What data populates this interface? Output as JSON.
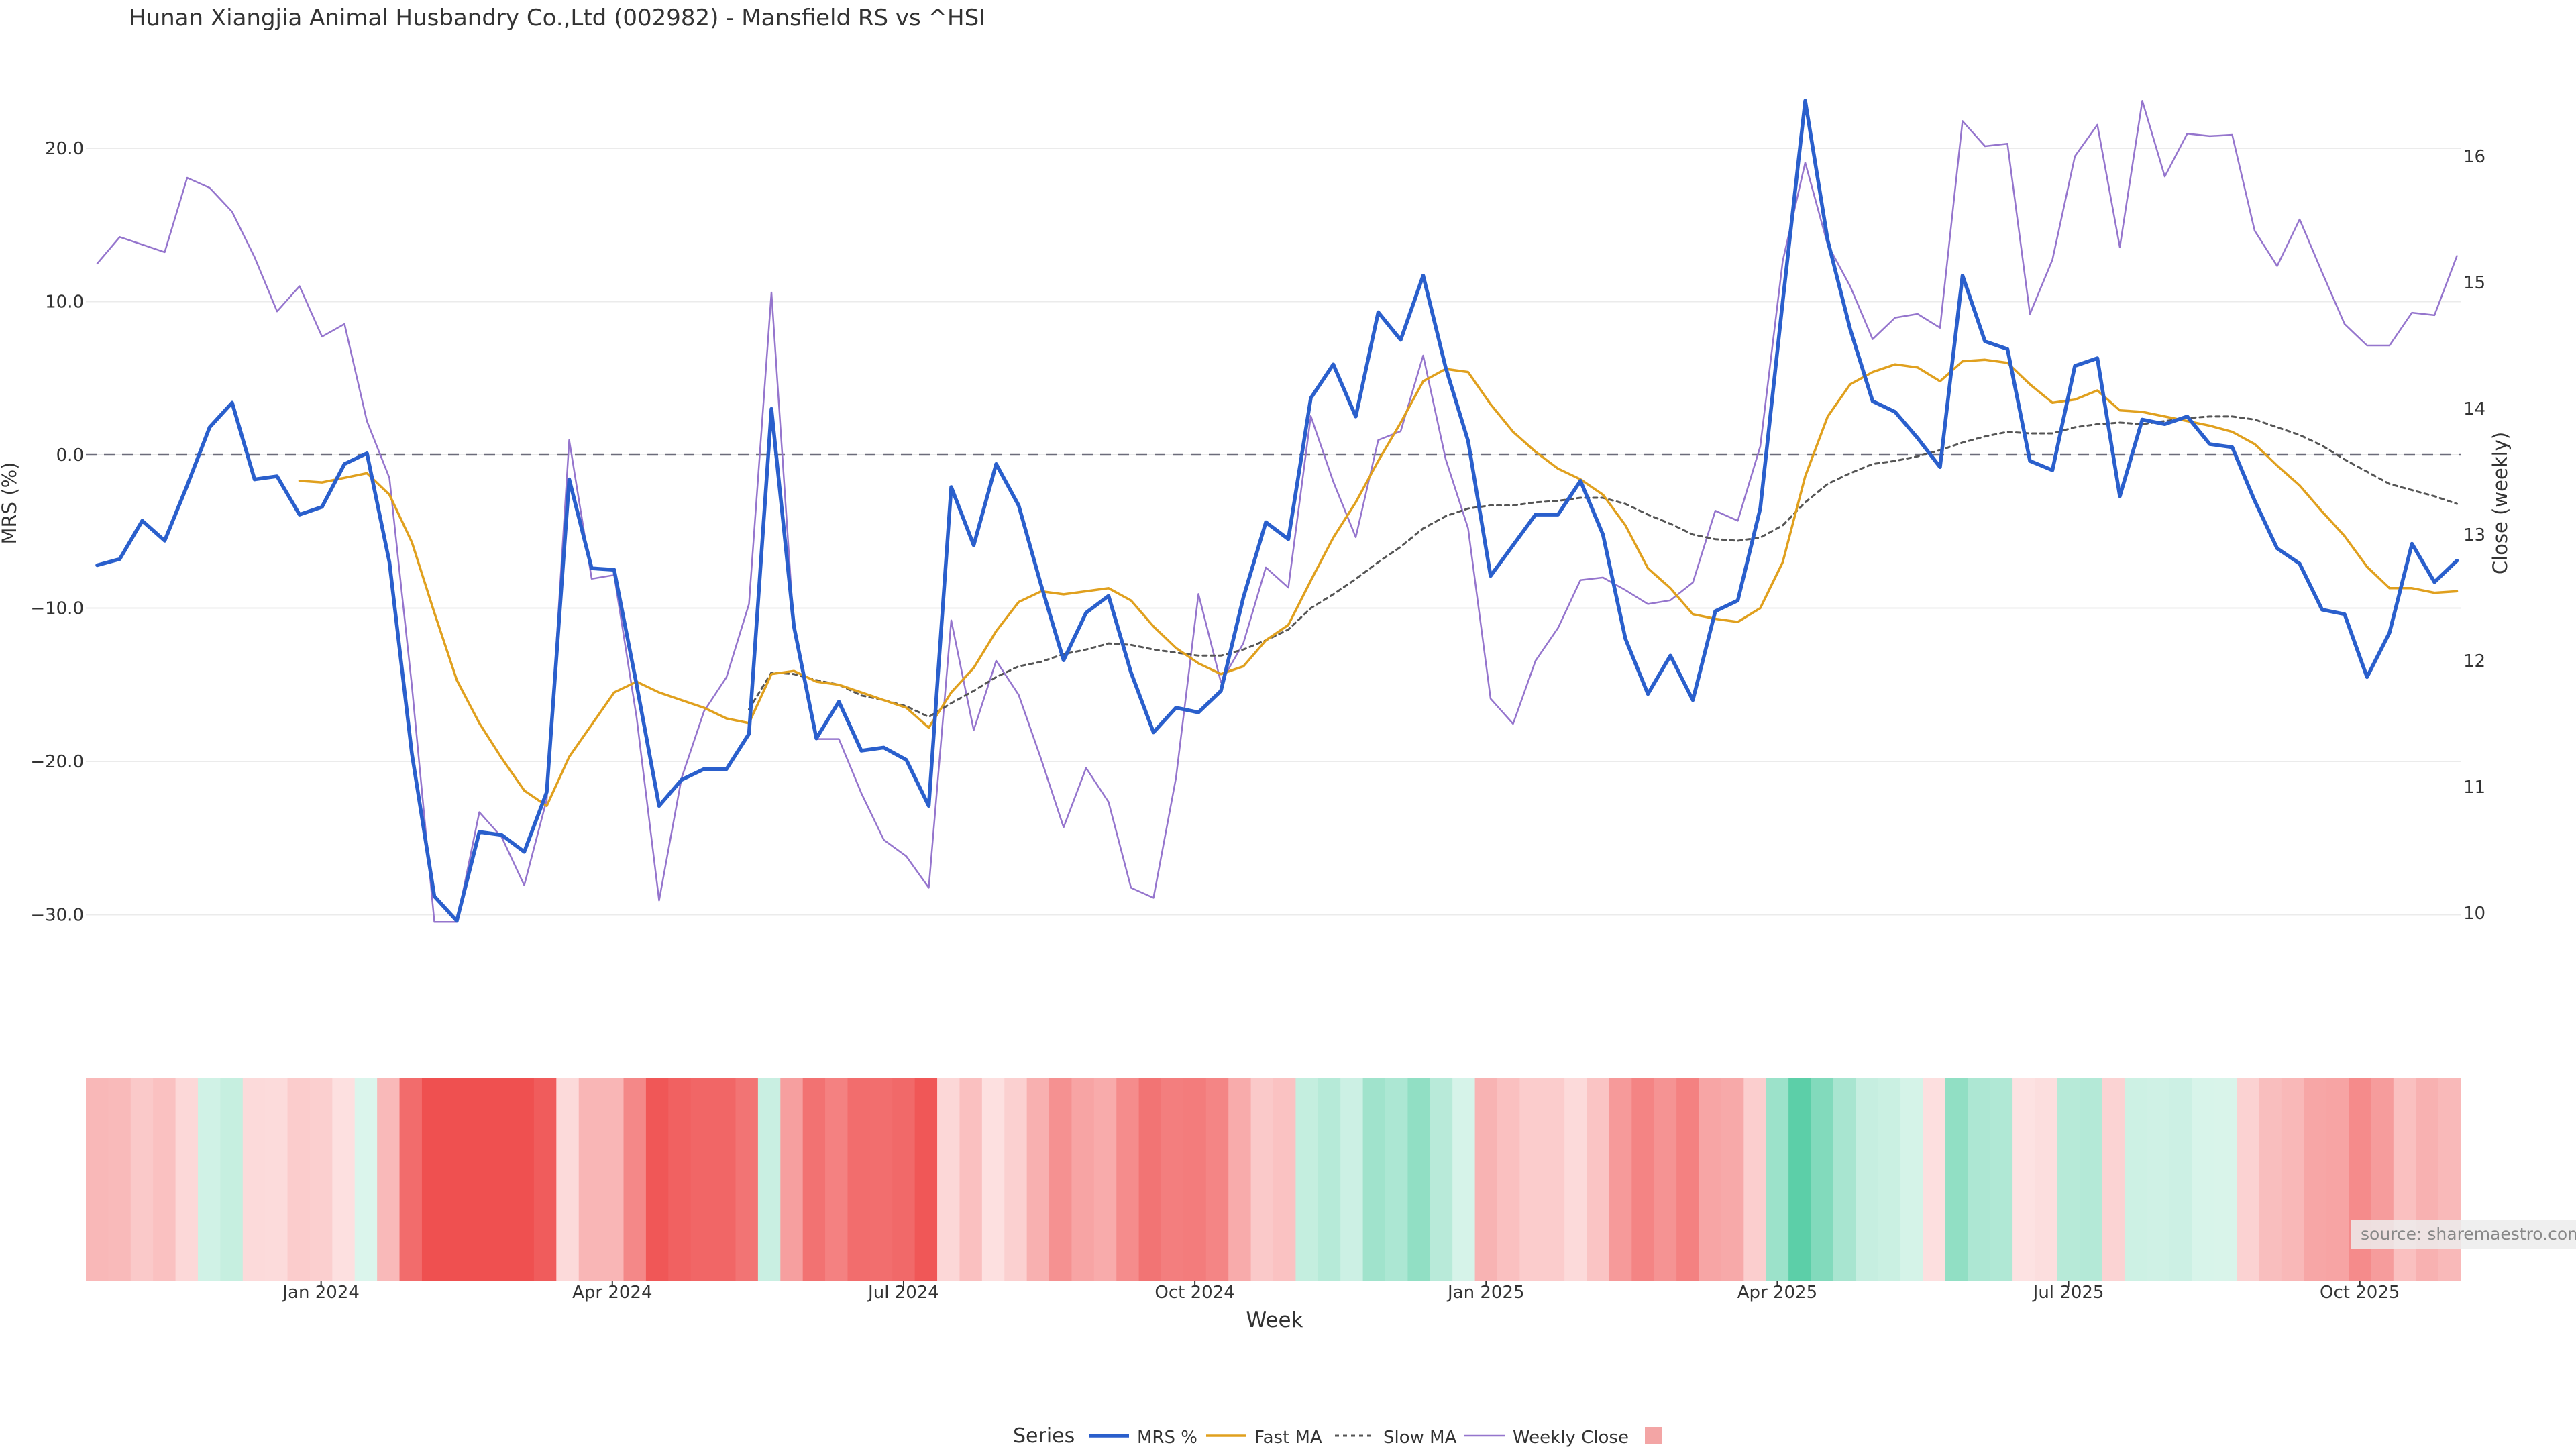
{
  "chart_data": {
    "type": "line",
    "title": "Hunan Xiangjia Animal Husbandry Co.,Ltd (002982) - Mansfield RS vs ^HSI",
    "xlabel": "Week",
    "ylabel_left": "MRS (%)",
    "ylabel_right": "Close (weekly)",
    "x_ticks": [
      "Jan 2024",
      "Apr 2024",
      "Jul 2024",
      "Oct 2024",
      "Jan 2025",
      "Apr 2025",
      "Jul 2025",
      "Oct 2025"
    ],
    "x_ticks_week_index": [
      10,
      23,
      36,
      49,
      62,
      75,
      88,
      101
    ],
    "y_left_ticks": [
      20.0,
      10.0,
      0.0,
      -10.0,
      -20.0,
      -30.0
    ],
    "y_left_tick_labels": [
      "20.0",
      "10.0",
      "0.0",
      "−10.0",
      "−20.0",
      "−30.0"
    ],
    "y_left_range": [
      -38,
      25
    ],
    "y_right_ticks": [
      16,
      15,
      14,
      13,
      12,
      11,
      10
    ],
    "y_right_range": [
      9.1,
      16.8
    ],
    "zero_line": 0.0,
    "grid": true,
    "legend_title": "Series",
    "legend_position": "bottom-center",
    "source_label": "source: sharemaestro.com",
    "colors": {
      "mrs": "#2a5fcc",
      "fast_ma": "#e0a01e",
      "slow_ma": "#555555",
      "weekly_close": "#9575cd",
      "zero_line": "#6c6c7a",
      "heat_legend": "#f3a5a5"
    },
    "series": [
      {
        "name": "MRS %",
        "values": [
          -7.2,
          -6.8,
          -4.3,
          -5.6,
          -2.0,
          1.8,
          3.4,
          -1.6,
          -1.4,
          -3.9,
          -3.4,
          -0.6,
          0.1,
          -7.0,
          -19.5,
          -28.8,
          -30.4,
          -24.6,
          -24.8,
          -25.9,
          -22.0,
          -1.6,
          -7.4,
          -7.5,
          -15.0,
          -22.9,
          -21.2,
          -20.5,
          -20.5,
          -18.2,
          3.0,
          -11.2,
          -18.5,
          -16.1,
          -19.3,
          -19.1,
          -19.9,
          -22.9,
          -2.1,
          -5.9,
          -0.6,
          -3.3,
          -8.5,
          -13.4,
          -10.3,
          -9.2,
          -14.2,
          -18.1,
          -16.5,
          -16.8,
          -15.4,
          -9.3,
          -4.4,
          -5.5,
          3.7,
          5.9,
          2.5,
          9.3,
          7.5,
          11.7,
          5.7,
          0.9,
          -7.9,
          -5.9,
          -3.9,
          -3.9,
          -1.7,
          -5.2,
          -12.0,
          -15.6,
          -13.1,
          -16.0,
          -10.2,
          -9.5,
          -3.5,
          10.0,
          23.1,
          14.0,
          8.2,
          3.5,
          2.8,
          1.1,
          -0.8,
          11.7,
          7.4,
          6.9,
          -0.4,
          -1.0,
          5.8,
          6.3,
          -2.7,
          2.3,
          2.0,
          2.5,
          0.7,
          0.5,
          -3.0,
          -6.1,
          -7.1,
          -10.1,
          -10.4,
          -14.5,
          -11.6,
          -5.8,
          -8.3,
          -6.9
        ]
      },
      {
        "name": "Fast MA",
        "values": [
          null,
          null,
          null,
          null,
          null,
          null,
          null,
          null,
          null,
          -1.7,
          -1.8,
          -1.5,
          -1.2,
          -2.6,
          -5.7,
          -10.3,
          -14.7,
          -17.5,
          -19.8,
          -21.9,
          -22.9,
          -19.7,
          -17.6,
          -15.5,
          -14.8,
          -15.5,
          -16.0,
          -16.5,
          -17.2,
          -17.5,
          -14.3,
          -14.1,
          -14.8,
          -15.0,
          -15.5,
          -16.0,
          -16.5,
          -17.8,
          -15.5,
          -13.9,
          -11.5,
          -9.6,
          -8.9,
          -9.1,
          -8.9,
          -8.7,
          -9.5,
          -11.2,
          -12.6,
          -13.6,
          -14.3,
          -13.8,
          -12.1,
          -11.1,
          -8.2,
          -5.4,
          -3.1,
          -0.4,
          2.1,
          4.8,
          5.6,
          5.4,
          3.3,
          1.5,
          0.2,
          -0.9,
          -1.6,
          -2.6,
          -4.6,
          -7.4,
          -8.7,
          -10.4,
          -10.7,
          -10.9,
          -10.0,
          -7.0,
          -1.4,
          2.5,
          4.6,
          5.4,
          5.9,
          5.7,
          4.8,
          6.1,
          6.2,
          6.0,
          4.6,
          3.4,
          3.6,
          4.2,
          2.9,
          2.8,
          2.5,
          2.2,
          1.9,
          1.5,
          0.7,
          -0.7,
          -2.0,
          -3.7,
          -5.3,
          -7.3,
          -8.7,
          -8.7,
          -9.0,
          -8.9
        ]
      },
      {
        "name": "Slow MA",
        "values": [
          null,
          null,
          null,
          null,
          null,
          null,
          null,
          null,
          null,
          null,
          null,
          null,
          null,
          null,
          null,
          null,
          null,
          null,
          null,
          null,
          null,
          null,
          null,
          null,
          null,
          null,
          null,
          null,
          null,
          -16.6,
          -14.2,
          -14.3,
          -14.7,
          -15.0,
          -15.7,
          -16.0,
          -16.4,
          -17.1,
          -16.2,
          -15.4,
          -14.5,
          -13.8,
          -13.5,
          -13.0,
          -12.7,
          -12.3,
          -12.4,
          -12.7,
          -12.9,
          -13.1,
          -13.1,
          -12.7,
          -12.1,
          -11.4,
          -10.0,
          -9.1,
          -8.1,
          -7.0,
          -6.0,
          -4.8,
          -4.0,
          -3.5,
          -3.3,
          -3.3,
          -3.1,
          -3.0,
          -2.8,
          -2.8,
          -3.2,
          -3.9,
          -4.5,
          -5.2,
          -5.5,
          -5.6,
          -5.4,
          -4.6,
          -3.1,
          -1.9,
          -1.2,
          -0.6,
          -0.4,
          -0.1,
          0.3,
          0.8,
          1.2,
          1.5,
          1.4,
          1.4,
          1.8,
          2.0,
          2.1,
          2.0,
          2.2,
          2.4,
          2.5,
          2.5,
          2.3,
          1.8,
          1.3,
          0.6,
          -0.3,
          -1.1,
          -1.9,
          -2.3,
          -2.7,
          -3.2
        ]
      },
      {
        "name": "Weekly Close",
        "axis": "right",
        "values": [
          15.15,
          15.36,
          15.3,
          15.24,
          15.83,
          15.75,
          15.56,
          15.2,
          14.77,
          14.97,
          14.57,
          14.67,
          13.9,
          13.45,
          11.8,
          9.93,
          9.93,
          10.8,
          10.6,
          10.22,
          10.9,
          13.75,
          12.65,
          12.68,
          11.55,
          10.1,
          11.07,
          11.6,
          11.87,
          12.45,
          14.92,
          12.25,
          11.38,
          11.38,
          10.95,
          10.58,
          10.45,
          10.2,
          12.32,
          11.45,
          12.0,
          11.73,
          11.22,
          10.68,
          11.15,
          10.88,
          10.2,
          10.12,
          11.07,
          12.53,
          11.83,
          12.14,
          12.74,
          12.58,
          13.94,
          13.42,
          12.98,
          13.75,
          13.82,
          14.42,
          13.6,
          13.05,
          11.7,
          11.5,
          12.0,
          12.26,
          12.64,
          12.66,
          12.56,
          12.45,
          12.48,
          12.62,
          13.19,
          13.11,
          13.7,
          15.17,
          15.95,
          15.3,
          14.97,
          14.55,
          14.72,
          14.75,
          14.64,
          16.28,
          16.08,
          16.1,
          14.75,
          15.18,
          16.0,
          16.25,
          15.28,
          16.44,
          15.84,
          16.18,
          16.16,
          16.17,
          15.41,
          15.13,
          15.5,
          15.08,
          14.67,
          14.5,
          14.5,
          14.76,
          14.74,
          15.21
        ]
      }
    ],
    "heatmap_strip": {
      "description": "MRS colour strip per week, red = negative, green = positive",
      "values": [
        -7.2,
        -6.8,
        -4.3,
        -5.6,
        -2.0,
        1.8,
        3.4,
        -1.6,
        -1.4,
        -3.9,
        -3.4,
        -0.6,
        0.1,
        -7.0,
        -19.5,
        -28.8,
        -30.4,
        -24.6,
        -24.8,
        -25.9,
        -22.0,
        -1.6,
        -7.4,
        -7.5,
        -15.0,
        -22.9,
        -21.2,
        -20.5,
        -20.5,
        -18.2,
        3.0,
        -11.2,
        -18.5,
        -16.1,
        -19.3,
        -19.1,
        -19.9,
        -22.9,
        -2.1,
        -5.9,
        -0.6,
        -3.3,
        -8.5,
        -13.4,
        -10.3,
        -9.2,
        -14.2,
        -18.1,
        -16.5,
        -16.8,
        -15.4,
        -9.3,
        -4.4,
        -5.5,
        3.7,
        5.9,
        2.5,
        9.3,
        7.5,
        11.7,
        5.7,
        0.9,
        -7.9,
        -5.9,
        -3.9,
        -3.9,
        -1.7,
        -5.2,
        -12.0,
        -15.6,
        -13.1,
        -16.0,
        -10.2,
        -9.5,
        -3.5,
        10.0,
        23.1,
        14.0,
        8.2,
        3.5,
        2.8,
        1.1,
        -0.8,
        11.7,
        7.4,
        6.9,
        -0.4,
        -1.0,
        5.8,
        6.3,
        -2.7,
        2.3,
        2.0,
        2.5,
        0.7,
        0.5,
        -3.0,
        -6.1,
        -7.1,
        -10.1,
        -10.4,
        -14.5,
        -11.6,
        -5.8,
        -8.3,
        -6.9
      ]
    }
  }
}
